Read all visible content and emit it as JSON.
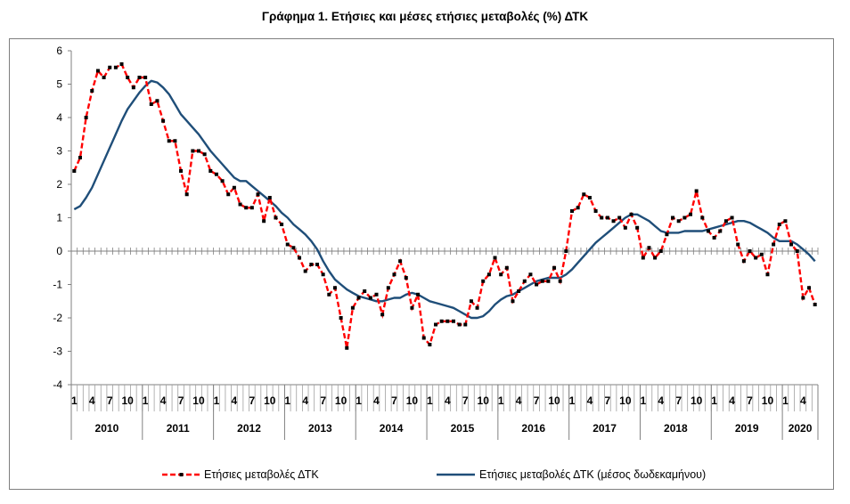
{
  "title": "Γράφημα 1. Ετήσιες και μέσες ετήσιες μεταβολές (%) ΔΤΚ",
  "chart_data": {
    "type": "line",
    "title": "Γράφημα 1. Ετήσιες και μέσες ετήσιες μεταβολές (%) ΔΤΚ",
    "xlabel": "",
    "ylabel": "",
    "ylim": [
      -4,
      6
    ],
    "yticks": [
      "6",
      "5",
      "4",
      "3",
      "2",
      "1",
      "0",
      "-1",
      "-2",
      "-3",
      "-4"
    ],
    "month_labels": [
      "1",
      "4",
      "7",
      "10"
    ],
    "years": [
      "2010",
      "2011",
      "2012",
      "2013",
      "2014",
      "2015",
      "2016",
      "2017",
      "2018",
      "2019",
      "2020"
    ],
    "x_start": "2010-01",
    "x_end": "2020-06",
    "grid": false,
    "legend": "bottom",
    "series": [
      {
        "name": "Ετήσιες μεταβολές ΔΤΚ",
        "color": "#ff0000",
        "style": "dashed-with-square-markers",
        "values": [
          2.4,
          2.8,
          4.0,
          4.8,
          5.4,
          5.2,
          5.5,
          5.5,
          5.6,
          5.2,
          4.9,
          5.2,
          5.2,
          4.4,
          4.5,
          3.9,
          3.3,
          3.3,
          2.4,
          1.7,
          3.0,
          3.0,
          2.9,
          2.4,
          2.3,
          2.1,
          1.7,
          1.9,
          1.4,
          1.3,
          1.3,
          1.7,
          0.9,
          1.6,
          1.0,
          0.8,
          0.2,
          0.1,
          -0.2,
          -0.6,
          -0.4,
          -0.4,
          -0.7,
          -1.3,
          -1.1,
          -2.0,
          -2.9,
          -1.7,
          -1.4,
          -1.2,
          -1.4,
          -1.3,
          -1.9,
          -1.1,
          -0.7,
          -0.3,
          -0.8,
          -1.7,
          -1.3,
          -2.6,
          -2.8,
          -2.2,
          -2.1,
          -2.1,
          -2.1,
          -2.2,
          -2.2,
          -1.5,
          -1.7,
          -0.9,
          -0.7,
          -0.2,
          -0.7,
          -0.5,
          -1.5,
          -1.2,
          -0.9,
          -0.7,
          -1.0,
          -0.9,
          -0.9,
          -0.5,
          -0.9,
          0.0,
          1.2,
          1.3,
          1.7,
          1.6,
          1.2,
          1.0,
          1.0,
          0.9,
          1.0,
          0.7,
          1.1,
          0.7,
          -0.2,
          0.1,
          -0.2,
          0.0,
          0.5,
          1.0,
          0.9,
          1.0,
          1.1,
          1.8,
          1.0,
          0.6,
          0.4,
          0.6,
          0.9,
          1.0,
          0.2,
          -0.3,
          0.0,
          -0.2,
          -0.1,
          -0.7,
          0.2,
          0.8,
          0.9,
          0.2,
          0.0,
          -1.4,
          -1.1,
          -1.6
        ]
      },
      {
        "name": "Ετήσιες μεταβολές ΔΤΚ (μέσος δωδεκαμήνου)",
        "color": "#1f4e79",
        "style": "solid",
        "values": [
          1.25,
          1.35,
          1.6,
          1.9,
          2.3,
          2.7,
          3.1,
          3.5,
          3.9,
          4.25,
          4.5,
          4.75,
          4.95,
          5.1,
          5.05,
          4.9,
          4.7,
          4.4,
          4.1,
          3.9,
          3.7,
          3.5,
          3.25,
          3.0,
          2.8,
          2.6,
          2.4,
          2.2,
          2.1,
          2.1,
          1.95,
          1.8,
          1.65,
          1.5,
          1.35,
          1.15,
          1.0,
          0.8,
          0.65,
          0.5,
          0.3,
          0.05,
          -0.3,
          -0.6,
          -0.85,
          -1.0,
          -1.15,
          -1.25,
          -1.35,
          -1.4,
          -1.45,
          -1.5,
          -1.5,
          -1.45,
          -1.4,
          -1.4,
          -1.3,
          -1.25,
          -1.3,
          -1.4,
          -1.5,
          -1.55,
          -1.6,
          -1.65,
          -1.7,
          -1.8,
          -1.9,
          -2.0,
          -2.0,
          -1.95,
          -1.8,
          -1.6,
          -1.45,
          -1.35,
          -1.3,
          -1.2,
          -1.1,
          -1.0,
          -0.9,
          -0.85,
          -0.8,
          -0.8,
          -0.8,
          -0.7,
          -0.55,
          -0.35,
          -0.15,
          0.05,
          0.25,
          0.4,
          0.55,
          0.7,
          0.85,
          1.0,
          1.1,
          1.1,
          1.0,
          0.9,
          0.75,
          0.6,
          0.55,
          0.55,
          0.55,
          0.6,
          0.6,
          0.6,
          0.6,
          0.65,
          0.7,
          0.75,
          0.8,
          0.85,
          0.9,
          0.9,
          0.85,
          0.75,
          0.65,
          0.55,
          0.4,
          0.3,
          0.3,
          0.3,
          0.2,
          0.05,
          -0.1,
          -0.3
        ]
      }
    ]
  }
}
